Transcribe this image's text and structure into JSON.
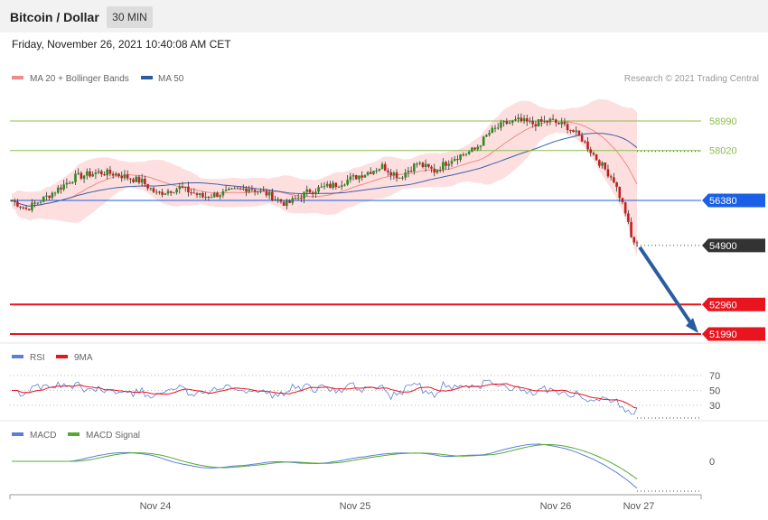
{
  "header": {
    "title": "Bitcoin / Dollar",
    "timeframe": "30 MIN"
  },
  "datetime": "Friday, November 26, 2021 10:40:08 AM CET",
  "copyright": "Research © 2021 Trading Central",
  "chart_data": [
    {
      "type": "candlestick",
      "pane": "price",
      "legend": [
        {
          "name": "MA 20 + Bollinger Bands",
          "color": "#f28a8a"
        },
        {
          "name": "MA 50",
          "color": "#2a5d9f"
        }
      ],
      "ylim": [
        51000,
        60800
      ],
      "levels": [
        {
          "label": "58990",
          "value": 58990,
          "color": "#8bbf4a",
          "role": "resistance"
        },
        {
          "label": "58020",
          "value": 58020,
          "color": "#8bbf4a",
          "role": "resistance"
        },
        {
          "label": "56380",
          "value": 56380,
          "color": "#1a5fe6",
          "role": "pivot"
        },
        {
          "label": "54900",
          "value": 54900,
          "color": "#333333",
          "role": "last price"
        },
        {
          "label": "52960",
          "value": 52960,
          "color": "#e8141e",
          "role": "support"
        },
        {
          "label": "51990",
          "value": 51990,
          "color": "#e8141e",
          "role": "support"
        }
      ],
      "x_ticks": [
        "Nov 24",
        "Nov 25",
        "Nov 26",
        "Nov 27"
      ],
      "forecast_arrow": {
        "from": 54900,
        "to": 51990,
        "color": "#2a5d9f"
      },
      "colors": {
        "up": "#2e8b1f",
        "down": "#c21f1f",
        "band": "#fcd7d7",
        "ma20": "#f28a8a",
        "ma50": "#3f5fa8"
      }
    },
    {
      "type": "line",
      "pane": "rsi",
      "legend": [
        {
          "name": "RSI",
          "color": "#5b7fd6"
        },
        {
          "name": "9MA",
          "color": "#e8141e"
        }
      ],
      "ylim": [
        10,
        80
      ],
      "y_ticks": [
        "70",
        "50",
        "30"
      ]
    },
    {
      "type": "line",
      "pane": "macd",
      "legend": [
        {
          "name": "MACD",
          "color": "#5b7fd6"
        },
        {
          "name": "MACD Signal",
          "color": "#56a833"
        }
      ],
      "y_ticks": [
        "0"
      ]
    }
  ]
}
